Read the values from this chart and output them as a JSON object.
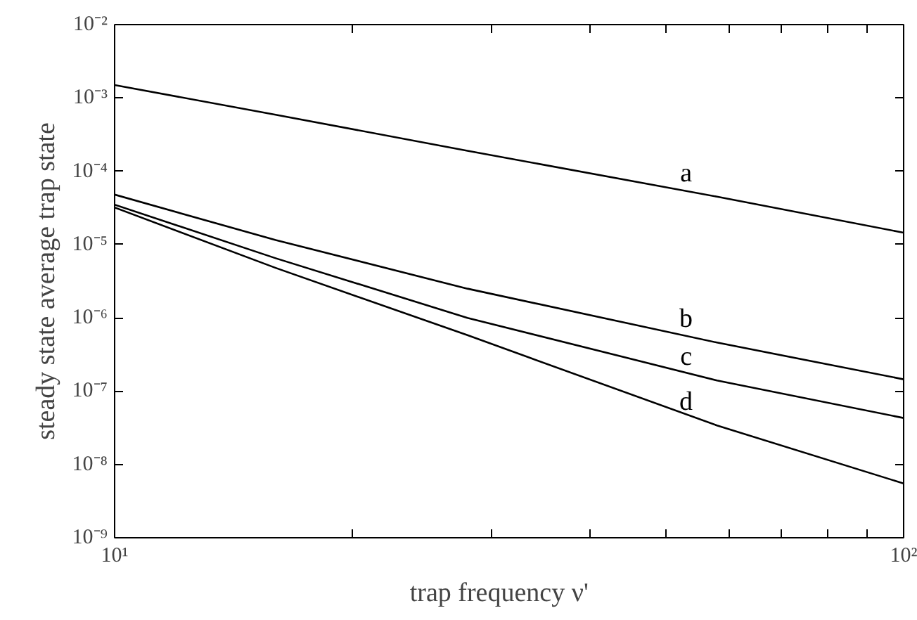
{
  "chart_data": {
    "type": "line",
    "xlabel": "trap frequency    ν'",
    "ylabel": "steady state average trap state",
    "log": "xy",
    "grid": false,
    "legend": false,
    "marker": "none",
    "line_style": "solid",
    "xlim": [
      10,
      100
    ],
    "ylim": [
      1e-09,
      0.01
    ],
    "xticks": [
      {
        "value": 10,
        "label": "10¹"
      },
      {
        "value": 20,
        "label": null
      },
      {
        "value": 30,
        "label": null
      },
      {
        "value": 40,
        "label": null
      },
      {
        "value": 50,
        "label": null
      },
      {
        "value": 60,
        "label": null
      },
      {
        "value": 70,
        "label": null
      },
      {
        "value": 80,
        "label": null
      },
      {
        "value": 90,
        "label": null
      },
      {
        "value": 100,
        "label": "10²"
      }
    ],
    "yticks": [
      {
        "value": 1e-09,
        "label": "10⁻⁹"
      },
      {
        "value": 1e-08,
        "label": "10⁻⁸"
      },
      {
        "value": 1e-07,
        "label": "10⁻⁷"
      },
      {
        "value": 1e-06,
        "label": "10⁻⁶"
      },
      {
        "value": 1e-05,
        "label": "10⁻⁵"
      },
      {
        "value": 0.0001,
        "label": "10⁻⁴"
      },
      {
        "value": 0.001,
        "label": "10⁻³"
      },
      {
        "value": 0.01,
        "label": "10⁻²"
      }
    ],
    "x": [
      10,
      16,
      28,
      58,
      100
    ],
    "series": [
      {
        "name": "a",
        "color": "#000000",
        "values": [
          0.0015,
          0.00059,
          0.00019,
          4.5e-05,
          1.45e-05
        ]
      },
      {
        "name": "b",
        "color": "#000000",
        "values": [
          4.8e-05,
          1.15e-05,
          2.5e-06,
          4.6e-07,
          1.45e-07
        ]
      },
      {
        "name": "c",
        "color": "#000000",
        "values": [
          3.5e-05,
          6.5e-06,
          1e-06,
          1.4e-07,
          4.3e-08
        ]
      },
      {
        "name": "d",
        "color": "#000000",
        "values": [
          3.2e-05,
          4.8e-06,
          5.8e-07,
          3.4e-08,
          5.5e-09
        ]
      }
    ]
  }
}
